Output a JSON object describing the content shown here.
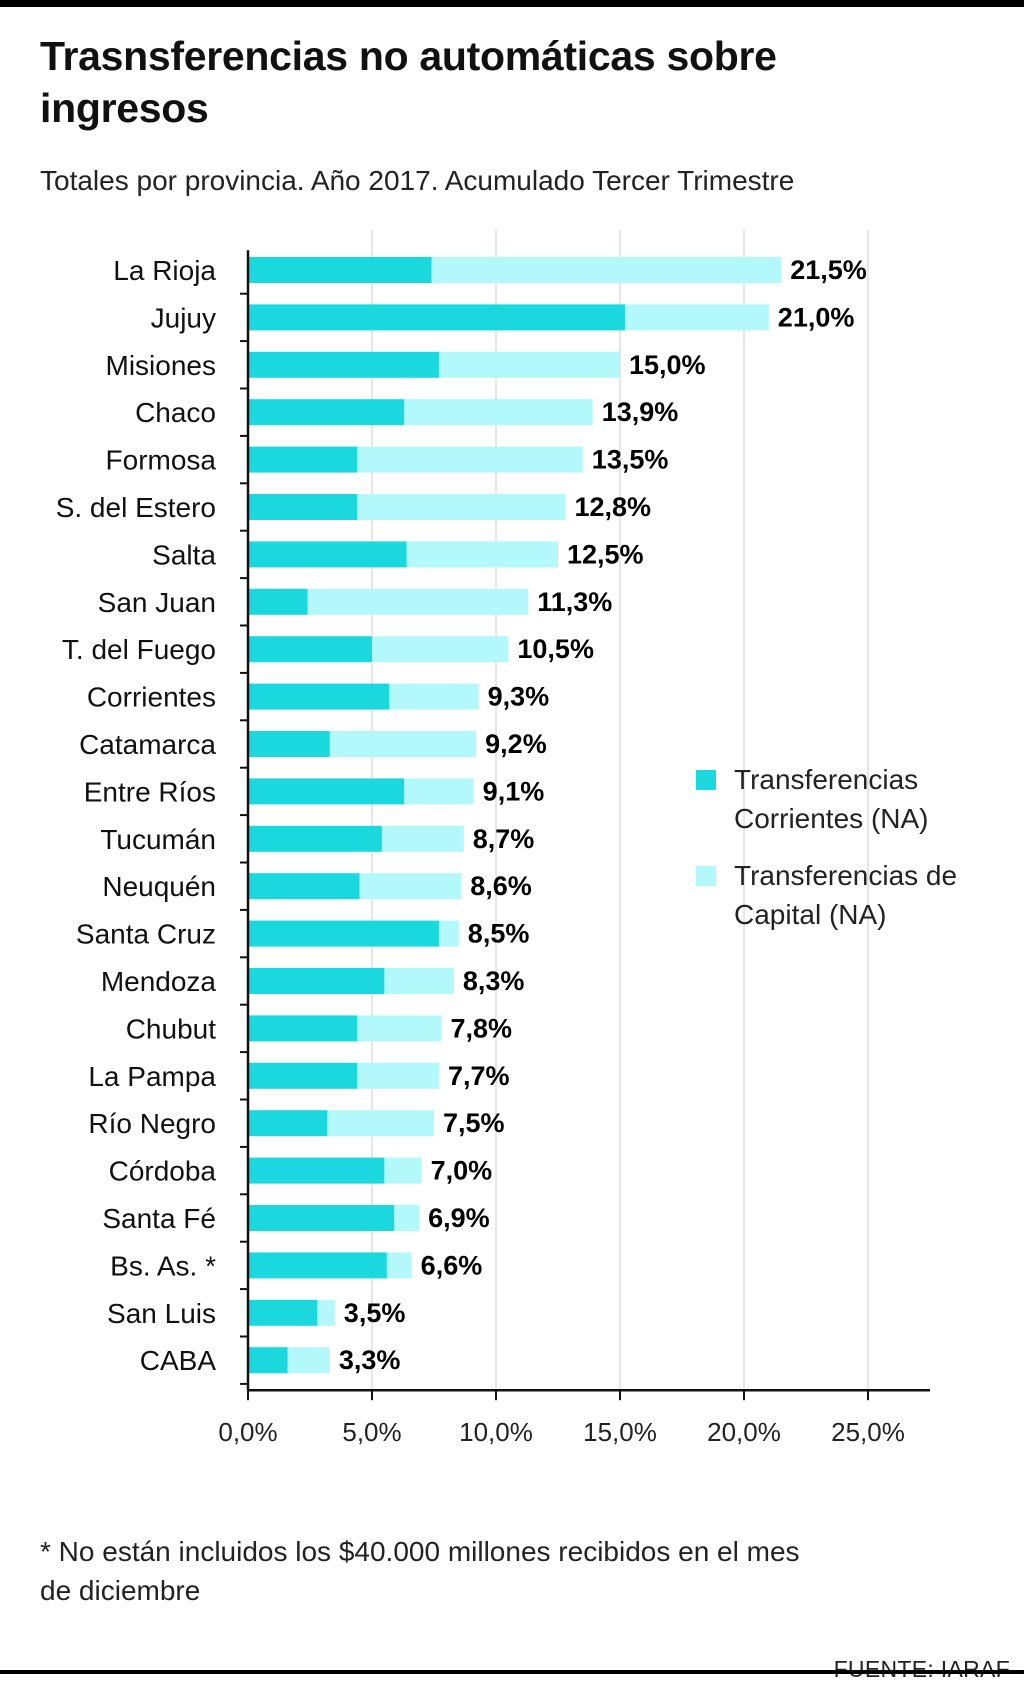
{
  "title": "Trasnsferencias no automáticas sobre ingresos",
  "subtitle": "Totales por provincia. Año 2017. Acumulado Tercer Trimestre",
  "footnote": "* No están incluidos los $40.000 millones recibidos en el mes de diciembre",
  "source": "FUENTE: IARAF",
  "colors": {
    "corrientes": "#1ad8dd",
    "capital": "#b3f8fb",
    "grid": "#dddddd",
    "axis": "#111111"
  },
  "chart_data": {
    "type": "bar",
    "orientation": "horizontal",
    "stacked": true,
    "categories": [
      "La Rioja",
      "Jujuy",
      "Misiones",
      "Chaco",
      "Formosa",
      "S. del Estero",
      "Salta",
      "San Juan",
      "T. del Fuego",
      "Corrientes",
      "Catamarca",
      "Entre Ríos",
      "Tucumán",
      "Neuquén",
      "Santa Cruz",
      "Mendoza",
      "Chubut",
      "La Pampa",
      "Río Negro",
      "Córdoba",
      "Santa Fé",
      "Bs. As. *",
      "San Luis",
      "CABA"
    ],
    "series": [
      {
        "name": "Transferencias Corrientes (NA)",
        "color": "#1ad8dd",
        "values": [
          7.4,
          15.2,
          7.7,
          6.3,
          4.4,
          4.4,
          6.4,
          2.4,
          5.0,
          5.7,
          3.3,
          6.3,
          5.4,
          4.5,
          7.7,
          5.5,
          4.4,
          4.4,
          3.2,
          5.5,
          5.9,
          5.6,
          2.8,
          1.6
        ]
      },
      {
        "name": "Transferencias de Capital (NA)",
        "color": "#b3f8fb",
        "values": [
          14.1,
          5.8,
          7.3,
          7.6,
          9.1,
          8.4,
          6.1,
          8.9,
          5.5,
          3.6,
          5.9,
          2.8,
          3.3,
          4.1,
          0.8,
          2.8,
          3.4,
          3.3,
          4.3,
          1.5,
          1.0,
          1.0,
          0.7,
          1.7
        ]
      }
    ],
    "totals": [
      "21,5%",
      "21,0%",
      "15,0%",
      "13,9%",
      "13,5%",
      "12,8%",
      "12,5%",
      "11,3%",
      "10,5%",
      "9,3%",
      "9,2%",
      "9,1%",
      "8,7%",
      "8,6%",
      "8,5%",
      "8,3%",
      "7,8%",
      "7,7%",
      "7,5%",
      "7,0%",
      "6,9%",
      "6,6%",
      "3,5%",
      "3,3%"
    ],
    "xlim": [
      0,
      27.5
    ],
    "xticks": [
      0,
      5,
      10,
      15,
      20,
      25
    ],
    "xtick_labels": [
      "0,0%",
      "5,0%",
      "10,0%",
      "15,0%",
      "20,0%",
      "25,0%"
    ],
    "grid": "vertical",
    "legend": "right"
  },
  "legend": [
    {
      "label": "Transferencias Corrientes (NA)",
      "color": "#1ad8dd",
      "icon": "square"
    },
    {
      "label": "Transferencias de Capital (NA)",
      "color": "#b3f8fb",
      "icon": "square"
    }
  ]
}
